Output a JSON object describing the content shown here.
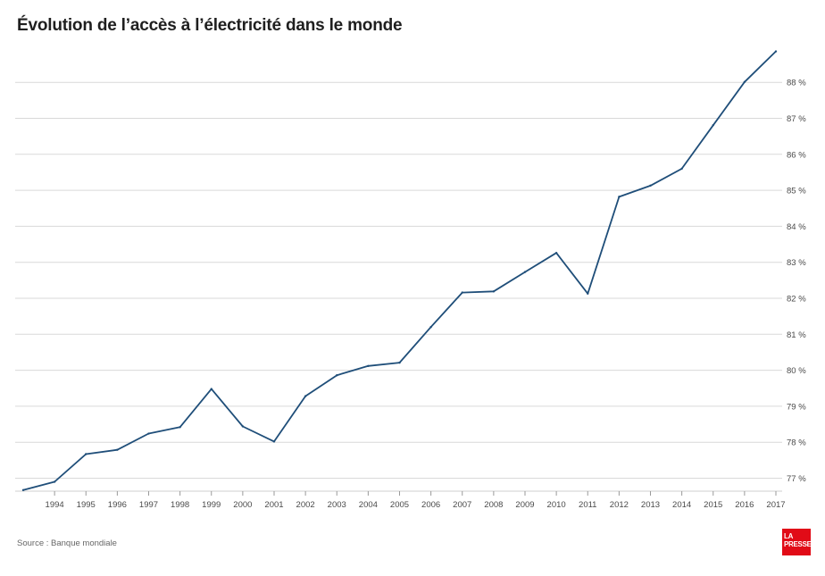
{
  "title": "Évolution de l’accès à l’électricité dans le monde",
  "source": "Source : Banque mondiale",
  "logo": {
    "line1": "LA",
    "line2": "PRESSE",
    "color": "#e10b17"
  },
  "chart_data": {
    "type": "line",
    "title": "Évolution de l’accès à l’électricité dans le monde",
    "xlabel": "",
    "ylabel": "",
    "x": [
      "1993",
      "1994",
      "1995",
      "1996",
      "1997",
      "1998",
      "1999",
      "2000",
      "2001",
      "2002",
      "2003",
      "2004",
      "2005",
      "2006",
      "2007",
      "2008",
      "2009",
      "2010",
      "2011",
      "2012",
      "2013",
      "2014",
      "2015",
      "2016",
      "2017"
    ],
    "x_tick_labels": [
      "1994",
      "1995",
      "1996",
      "1997",
      "1998",
      "1999",
      "2000",
      "2001",
      "2002",
      "2003",
      "2004",
      "2005",
      "2006",
      "2007",
      "2008",
      "2009",
      "2010",
      "2011",
      "2012",
      "2013",
      "2014",
      "2015",
      "2016",
      "2017"
    ],
    "series": [
      {
        "color": "#1f4e79",
        "values": [
          76.67,
          76.9,
          77.67,
          77.79,
          78.24,
          78.42,
          79.48,
          78.44,
          78.02,
          79.28,
          79.86,
          80.12,
          80.21,
          81.2,
          82.16,
          82.19,
          82.73,
          83.26,
          82.13,
          84.82,
          85.13,
          85.6,
          86.81,
          88.01,
          88.86
        ]
      }
    ],
    "ylim": [
      76.75,
      88.9
    ],
    "y_ticks": [
      77,
      78,
      79,
      80,
      81,
      82,
      83,
      84,
      85,
      86,
      87,
      88
    ],
    "y_tick_labels": [
      "77 %",
      "78 %",
      "79 %",
      "80 %",
      "81 %",
      "82 %",
      "83 %",
      "84 %",
      "85 %",
      "86 %",
      "87 %",
      "88 %"
    ],
    "grid": true,
    "y_axis_side": "right"
  }
}
